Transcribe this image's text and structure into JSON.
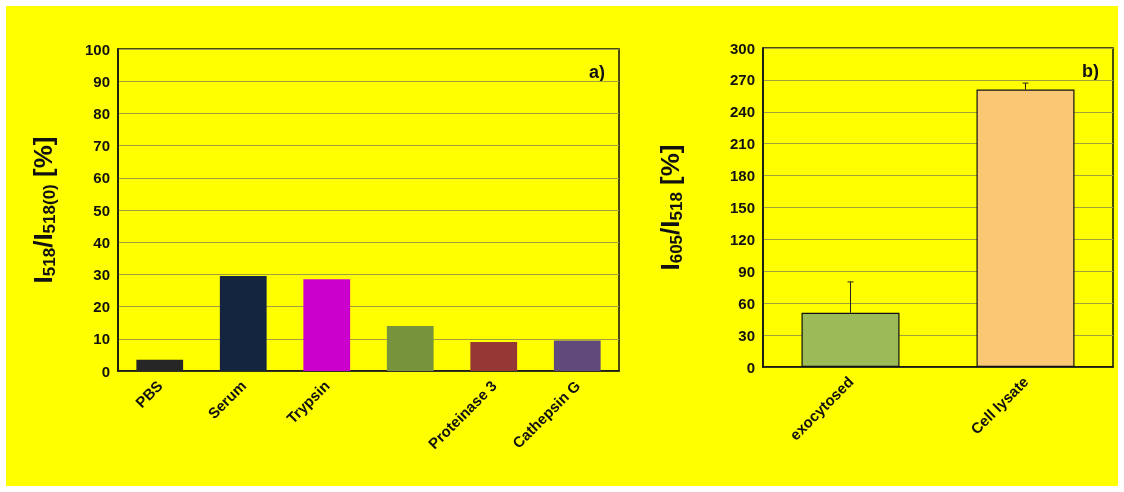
{
  "chart_data": [
    {
      "type": "bar",
      "ylabel": "I$_{518}$/I$_{518(0)}$ [%]",
      "categories": [
        "PBS",
        "Serum",
        "Trypsin",
        null,
        "Proteinase 3",
        "Cathepsin G"
      ],
      "values": [
        3.5,
        29.5,
        28.5,
        14,
        9,
        9.5
      ],
      "colors": [
        "#262626",
        "#14263f",
        "#cc00cc",
        "#77933c",
        "#953735",
        "#604a7b"
      ],
      "ylim": [
        0,
        100
      ],
      "yticks": [
        0,
        10,
        20,
        30,
        40,
        50,
        60,
        70,
        80,
        90,
        100
      ],
      "grid": "y",
      "annotations": [
        "a)"
      ]
    },
    {
      "type": "bar",
      "ylabel": "I$_{605}$/I$_{518}$ [%]",
      "categories": [
        "exocytosed",
        "Cell lysate"
      ],
      "values": [
        51,
        261
      ],
      "errors": [
        [
          51,
          80
        ],
        [
          261,
          267
        ]
      ],
      "colors": [
        "#9bbb59",
        "#fac775"
      ],
      "ylim": [
        0,
        300
      ],
      "yticks": [
        0,
        30,
        60,
        90,
        120,
        150,
        180,
        210,
        240,
        270,
        300
      ],
      "grid": "y",
      "annotations": [
        "b)"
      ]
    }
  ]
}
